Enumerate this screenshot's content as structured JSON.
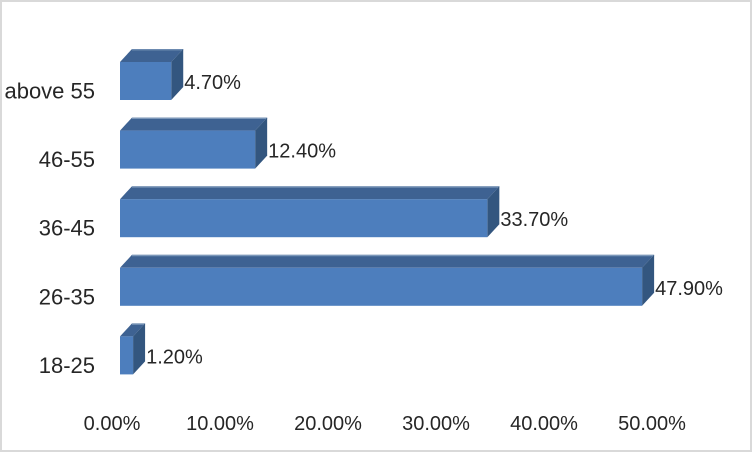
{
  "chart_data": {
    "type": "bar",
    "orientation": "horizontal",
    "style": "3d-extruded",
    "title": "",
    "legend": "none",
    "grid": false,
    "categories": [
      "above 55",
      "46-55",
      "36-45",
      "26-35",
      "18-25"
    ],
    "values": [
      4.7,
      12.4,
      33.7,
      47.9,
      1.2
    ],
    "data_labels": [
      "4.70%",
      "12.40%",
      "33.70%",
      "47.90%",
      "1.20%"
    ],
    "x_ticks": [
      {
        "label": "0.00%",
        "value": 0
      },
      {
        "label": "10.00%",
        "value": 10
      },
      {
        "label": "20.00%",
        "value": 20
      },
      {
        "label": "30.00%",
        "value": 30
      },
      {
        "label": "40.00%",
        "value": 40
      },
      {
        "label": "50.00%",
        "value": 50
      }
    ],
    "xlim": [
      0,
      55
    ],
    "colors": {
      "bar_front": "#4d7ebd",
      "bar_top": "#3e6292",
      "bar_side": "#33567f",
      "bar_top_highlight": "#7b97b9",
      "text": "#262626",
      "frame_border": "#d9d9d9",
      "background": "#ffffff"
    }
  }
}
